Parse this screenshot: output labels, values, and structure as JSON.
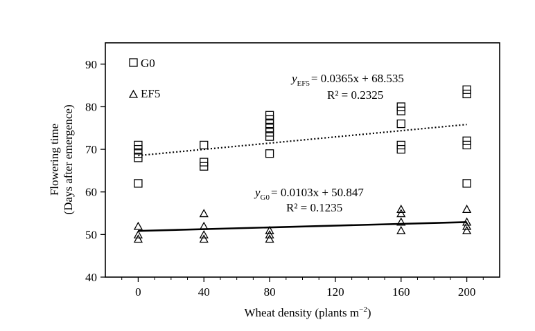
{
  "chart_data": {
    "type": "scatter",
    "xlabel": "Wheat density (plants m",
    "xlabel_sup": "−2",
    "xlabel_end": ")",
    "ylabel_line1": "Flowering time",
    "ylabel_line2": "(Days after emergence)",
    "xlim": [
      -20,
      220
    ],
    "ylim": [
      40,
      95
    ],
    "x_ticks": [
      0,
      40,
      80,
      120,
      160,
      200
    ],
    "y_ticks": [
      40,
      50,
      60,
      70,
      80,
      90
    ],
    "grid": false,
    "legend_placement": "top-left",
    "series": [
      {
        "name": "G0",
        "marker": "square",
        "points": [
          [
            0,
            71
          ],
          [
            0,
            70
          ],
          [
            0,
            68
          ],
          [
            0,
            69
          ],
          [
            0,
            62
          ],
          [
            40,
            71
          ],
          [
            40,
            67
          ],
          [
            40,
            66
          ],
          [
            80,
            78
          ],
          [
            80,
            77
          ],
          [
            80,
            76
          ],
          [
            80,
            75
          ],
          [
            80,
            74
          ],
          [
            80,
            73
          ],
          [
            80,
            69
          ],
          [
            160,
            80
          ],
          [
            160,
            79
          ],
          [
            160,
            76
          ],
          [
            160,
            71
          ],
          [
            160,
            70
          ],
          [
            200,
            84
          ],
          [
            200,
            83
          ],
          [
            200,
            72
          ],
          [
            200,
            71
          ],
          [
            200,
            62
          ]
        ],
        "trend": {
          "slope": 0.0365,
          "intercept": 68.535,
          "style": "dotted"
        },
        "equation": {
          "prefix": "y",
          "sub": "EF5",
          "rhs": "= 0.0365x + 68.535",
          "r2": "R² = 0.2325"
        }
      },
      {
        "name": "EF5",
        "marker": "triangle",
        "points": [
          [
            0,
            52
          ],
          [
            0,
            50
          ],
          [
            0,
            49
          ],
          [
            40,
            55
          ],
          [
            40,
            52
          ],
          [
            40,
            50
          ],
          [
            40,
            49
          ],
          [
            80,
            51
          ],
          [
            80,
            50
          ],
          [
            80,
            49
          ],
          [
            160,
            56
          ],
          [
            160,
            55
          ],
          [
            160,
            53
          ],
          [
            160,
            51
          ],
          [
            200,
            56
          ],
          [
            200,
            53
          ],
          [
            200,
            52
          ],
          [
            200,
            51
          ]
        ],
        "trend": {
          "slope": 0.0103,
          "intercept": 50.847,
          "style": "solid"
        },
        "equation": {
          "prefix": "y",
          "sub": "G0",
          "rhs": "= 0.0103x + 50.847",
          "r2": "R² = 0.1235"
        }
      }
    ]
  }
}
